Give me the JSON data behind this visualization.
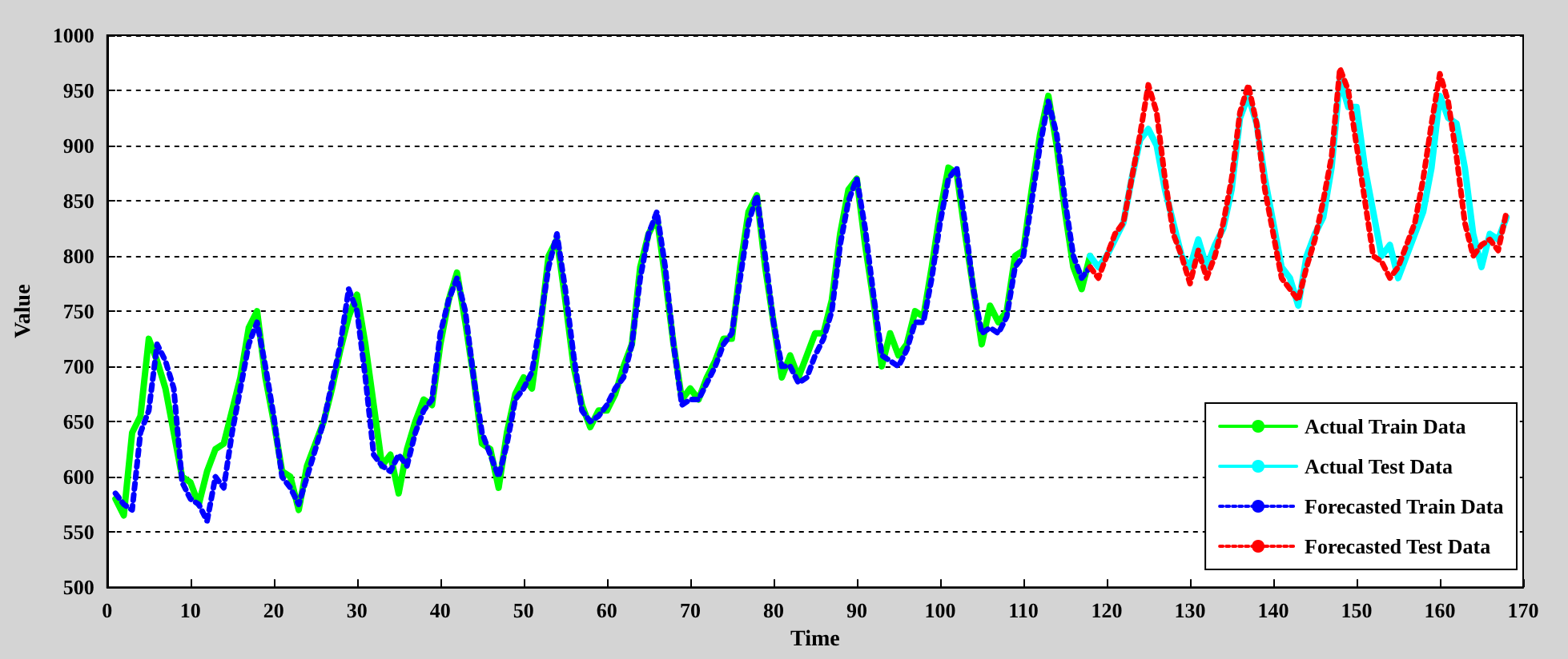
{
  "chart_data": {
    "type": "line",
    "xlabel": "Time",
    "ylabel": "Value",
    "xlim": [
      0,
      170
    ],
    "ylim": [
      500,
      1000
    ],
    "xticks": [
      0,
      10,
      20,
      30,
      40,
      50,
      60,
      70,
      80,
      90,
      100,
      110,
      120,
      130,
      140,
      150,
      160,
      170
    ],
    "yticks": [
      500,
      550,
      600,
      650,
      700,
      750,
      800,
      850,
      900,
      950,
      1000
    ],
    "grid": "y",
    "legend": "bottom right",
    "marker": "none",
    "series": [
      {
        "name": "Actual Train Data",
        "color": "#00ff00",
        "line_style": "solid",
        "x": [
          1,
          2,
          3,
          4,
          5,
          6,
          7,
          8,
          9,
          10,
          11,
          12,
          13,
          14,
          15,
          16,
          17,
          18,
          19,
          20,
          21,
          22,
          23,
          24,
          25,
          26,
          27,
          28,
          29,
          30,
          31,
          32,
          33,
          34,
          35,
          36,
          37,
          38,
          39,
          40,
          41,
          42,
          43,
          44,
          45,
          46,
          47,
          48,
          49,
          50,
          51,
          52,
          53,
          54,
          55,
          56,
          57,
          58,
          59,
          60,
          61,
          62,
          63,
          64,
          65,
          66,
          67,
          68,
          69,
          70,
          71,
          72,
          73,
          74,
          75,
          76,
          77,
          78,
          79,
          80,
          81,
          82,
          83,
          84,
          85,
          86,
          87,
          88,
          89,
          90,
          91,
          92,
          93,
          94,
          95,
          96,
          97,
          98,
          99,
          100,
          101,
          102,
          103,
          104,
          105,
          106,
          107,
          108,
          109,
          110,
          111,
          112,
          113,
          114,
          115,
          116,
          117,
          118
        ],
        "values": [
          580,
          565,
          640,
          655,
          725,
          705,
          680,
          640,
          600,
          595,
          575,
          605,
          625,
          630,
          660,
          690,
          735,
          750,
          690,
          650,
          605,
          600,
          570,
          610,
          630,
          650,
          680,
          715,
          745,
          765,
          720,
          665,
          610,
          620,
          585,
          625,
          650,
          670,
          665,
          720,
          760,
          785,
          740,
          690,
          630,
          625,
          590,
          640,
          675,
          690,
          680,
          735,
          800,
          815,
          760,
          700,
          665,
          645,
          660,
          660,
          675,
          700,
          720,
          790,
          820,
          835,
          780,
          720,
          670,
          680,
          670,
          690,
          705,
          725,
          725,
          790,
          840,
          855,
          790,
          740,
          690,
          710,
          690,
          710,
          730,
          730,
          760,
          820,
          860,
          870,
          810,
          760,
          700,
          730,
          710,
          720,
          750,
          745,
          790,
          840,
          880,
          875,
          820,
          770,
          720,
          755,
          740,
          750,
          800,
          805,
          860,
          910,
          945,
          900,
          840,
          790,
          770,
          800
        ]
      },
      {
        "name": "Actual Test Data",
        "color": "#00ffff",
        "line_style": "solid",
        "x": [
          118,
          119,
          120,
          121,
          122,
          123,
          124,
          125,
          126,
          127,
          128,
          129,
          130,
          131,
          132,
          133,
          134,
          135,
          136,
          137,
          138,
          139,
          140,
          141,
          142,
          143,
          144,
          145,
          146,
          147,
          148,
          149,
          150,
          151,
          152,
          153,
          154,
          155,
          156,
          157,
          158,
          159,
          160,
          161,
          162,
          163,
          164,
          165,
          166,
          167,
          168
        ],
        "values": [
          800,
          790,
          800,
          815,
          830,
          870,
          905,
          915,
          900,
          860,
          830,
          800,
          790,
          815,
          790,
          810,
          825,
          860,
          925,
          945,
          920,
          870,
          830,
          790,
          780,
          755,
          800,
          820,
          835,
          880,
          960,
          935,
          935,
          880,
          840,
          800,
          810,
          780,
          800,
          820,
          840,
          880,
          945,
          925,
          920,
          880,
          820,
          790,
          820,
          815,
          835
        ]
      },
      {
        "name": "Forecasted Train Data",
        "color": "#0000ff",
        "line_style": "dotted",
        "x": [
          1,
          2,
          3,
          4,
          5,
          6,
          7,
          8,
          9,
          10,
          11,
          12,
          13,
          14,
          15,
          16,
          17,
          18,
          19,
          20,
          21,
          22,
          23,
          24,
          25,
          26,
          27,
          28,
          29,
          30,
          31,
          32,
          33,
          34,
          35,
          36,
          37,
          38,
          39,
          40,
          41,
          42,
          43,
          44,
          45,
          46,
          47,
          48,
          49,
          50,
          51,
          52,
          53,
          54,
          55,
          56,
          57,
          58,
          59,
          60,
          61,
          62,
          63,
          64,
          65,
          66,
          67,
          68,
          69,
          70,
          71,
          72,
          73,
          74,
          75,
          76,
          77,
          78,
          79,
          80,
          81,
          82,
          83,
          84,
          85,
          86,
          87,
          88,
          89,
          90,
          91,
          92,
          93,
          94,
          95,
          96,
          97,
          98,
          99,
          100,
          101,
          102,
          103,
          104,
          105,
          106,
          107,
          108,
          109,
          110,
          111,
          112,
          113,
          114,
          115,
          116,
          117,
          118
        ],
        "values": [
          585,
          575,
          570,
          640,
          660,
          720,
          705,
          680,
          595,
          580,
          575,
          560,
          600,
          590,
          640,
          680,
          720,
          740,
          700,
          655,
          600,
          590,
          575,
          600,
          625,
          650,
          685,
          720,
          770,
          750,
          690,
          620,
          610,
          605,
          620,
          610,
          640,
          660,
          670,
          730,
          760,
          780,
          750,
          690,
          640,
          620,
          600,
          630,
          670,
          680,
          695,
          740,
          790,
          820,
          770,
          710,
          660,
          650,
          655,
          665,
          680,
          690,
          720,
          780,
          820,
          840,
          790,
          720,
          665,
          670,
          670,
          685,
          700,
          720,
          730,
          780,
          830,
          855,
          800,
          740,
          700,
          700,
          685,
          690,
          710,
          725,
          750,
          810,
          850,
          870,
          825,
          765,
          710,
          705,
          700,
          715,
          740,
          740,
          780,
          830,
          870,
          880,
          830,
          770,
          730,
          735,
          730,
          745,
          790,
          800,
          850,
          900,
          940,
          910,
          850,
          800,
          780,
          790
        ]
      },
      {
        "name": "Forecasted Test Data",
        "color": "#ff0000",
        "line_style": "dotted",
        "x": [
          118,
          119,
          120,
          121,
          122,
          123,
          124,
          125,
          126,
          127,
          128,
          129,
          130,
          131,
          132,
          133,
          134,
          135,
          136,
          137,
          138,
          139,
          140,
          141,
          142,
          143,
          144,
          145,
          146,
          147,
          148,
          149,
          150,
          151,
          152,
          153,
          154,
          155,
          156,
          157,
          158,
          159,
          160,
          161,
          162,
          163,
          164,
          165,
          166,
          167,
          168
        ],
        "values": [
          790,
          780,
          800,
          820,
          830,
          870,
          910,
          955,
          930,
          870,
          820,
          800,
          775,
          805,
          780,
          800,
          830,
          870,
          930,
          955,
          920,
          860,
          820,
          780,
          770,
          760,
          790,
          815,
          850,
          890,
          970,
          950,
          900,
          850,
          800,
          795,
          780,
          790,
          810,
          830,
          870,
          920,
          965,
          940,
          890,
          830,
          800,
          810,
          815,
          805,
          840
        ]
      }
    ]
  }
}
